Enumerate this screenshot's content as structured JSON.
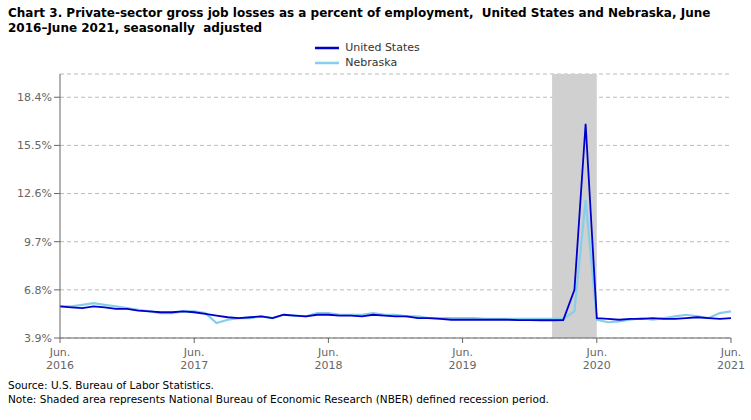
{
  "chart_data": {
    "type": "line",
    "title": "Chart 3. Private-sector gross job losses as a percent of employment,  United States and Nebraska, June 2016–June 2021, seasonally  adjusted",
    "annotations": [
      "Source: U.S. Bureau of Labor Statistics.",
      "Note: Shaded area represents National Bureau of Economic Research (NBER) defined recession period."
    ],
    "categories": [
      "Jun. 2016",
      null,
      null,
      null,
      null,
      null,
      null,
      null,
      null,
      null,
      null,
      null,
      "Jun. 2017",
      null,
      null,
      null,
      null,
      null,
      null,
      null,
      null,
      null,
      null,
      null,
      "Jun. 2018",
      null,
      null,
      null,
      null,
      null,
      null,
      null,
      null,
      null,
      null,
      null,
      "Jun. 2019",
      null,
      null,
      null,
      null,
      null,
      null,
      null,
      null,
      null,
      null,
      null,
      "Jun. 2020",
      null,
      null,
      null,
      null,
      null,
      null,
      null,
      null,
      null,
      null,
      null,
      "Jun. 2021"
    ],
    "recession": [
      44,
      48
    ],
    "series": [
      {
        "name": "United States",
        "color": "#0000CD",
        "values": [
          5.8,
          5.75,
          5.7,
          5.8,
          5.75,
          5.65,
          5.65,
          5.55,
          5.5,
          5.45,
          5.45,
          5.5,
          5.45,
          5.35,
          5.25,
          5.15,
          5.1,
          5.15,
          5.2,
          5.1,
          5.3,
          5.25,
          5.2,
          5.3,
          5.3,
          5.25,
          5.25,
          5.2,
          5.3,
          5.25,
          5.2,
          5.2,
          5.1,
          5.1,
          5.05,
          5.0,
          5.0,
          5.0,
          5.0,
          5.0,
          5.0,
          4.98,
          4.98,
          4.97,
          4.97,
          4.98,
          6.8,
          16.8,
          5.1,
          5.05,
          5.0,
          5.05,
          5.05,
          5.1,
          5.05,
          5.05,
          5.1,
          5.15,
          5.1,
          5.05,
          5.1
        ]
      },
      {
        "name": "Nebraska",
        "color": "#87CEEB",
        "values": [
          5.8,
          5.8,
          5.9,
          6.0,
          5.9,
          5.8,
          5.7,
          5.6,
          5.5,
          5.4,
          5.4,
          5.5,
          5.5,
          5.4,
          4.8,
          5.0,
          5.1,
          5.1,
          5.2,
          5.1,
          5.3,
          5.25,
          5.2,
          5.4,
          5.4,
          5.3,
          5.3,
          5.3,
          5.4,
          5.3,
          5.3,
          5.2,
          5.2,
          5.1,
          5.1,
          5.1,
          5.1,
          5.1,
          5.05,
          5.05,
          5.05,
          5.05,
          5.05,
          5.05,
          5.05,
          5.05,
          5.5,
          12.2,
          5.0,
          4.85,
          4.9,
          5.0,
          5.1,
          5.0,
          5.1,
          5.2,
          5.3,
          5.2,
          5.1,
          5.4,
          5.5
        ]
      }
    ],
    "ylim": [
      3.9,
      19.8
    ],
    "yticks": [
      {
        "value": 3.9,
        "label": "3.9%"
      },
      {
        "value": 6.8,
        "label": "6.8%"
      },
      {
        "value": 9.7,
        "label": "9.7%"
      },
      {
        "value": 12.6,
        "label": "12.6%"
      },
      {
        "value": 15.5,
        "label": "15.5%"
      },
      {
        "value": 18.4,
        "label": "18.4%"
      }
    ],
    "grid": true,
    "legend": "top"
  }
}
